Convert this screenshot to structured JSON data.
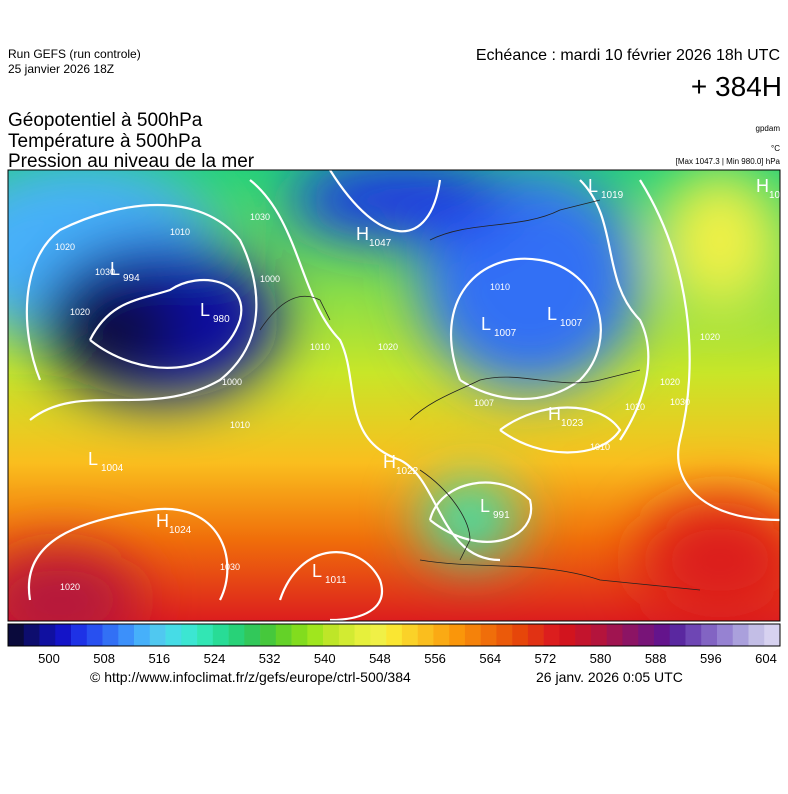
{
  "header": {
    "run": "Run GEFS (run controle)",
    "run_date": "25 janvier 2026 18Z",
    "valid": "Echéance : mardi 10 février 2026 18h UTC",
    "lead": "+ 384H"
  },
  "titles": [
    "Géopotentiel à 500hPa",
    "Température à 500hPa",
    "Pression au niveau de la mer"
  ],
  "units": {
    "geopotential": "gpdam",
    "temperature": "°C",
    "pressure": "[Max 1047.3 | Min 980.0] hPa"
  },
  "centers": [
    {
      "letter": "H",
      "value": "1047"
    },
    {
      "letter": "L",
      "value": "994"
    },
    {
      "letter": "L",
      "value": "980"
    },
    {
      "letter": "L",
      "value": "1004"
    },
    {
      "letter": "H",
      "value": "1024"
    },
    {
      "letter": "L",
      "value": "1011"
    },
    {
      "letter": "H",
      "value": "1022"
    },
    {
      "letter": "L",
      "value": "991"
    },
    {
      "letter": "L",
      "value": "1007"
    },
    {
      "letter": "L",
      "value": "1007"
    },
    {
      "letter": "H",
      "value": "1023"
    },
    {
      "letter": "L",
      "value": "1019"
    },
    {
      "letter": "H",
      "value": "10"
    }
  ],
  "isobar_labels": [
    "1030",
    "1020",
    "1010",
    "1000",
    "1030",
    "1020",
    "1010",
    "1000",
    "1010",
    "1020",
    "1010",
    "1030",
    "1020",
    "1010",
    "1007",
    "1020",
    "1020",
    "1030",
    "1020"
  ],
  "colorbar": {
    "ticks": [
      500,
      508,
      516,
      524,
      532,
      540,
      548,
      556,
      564,
      572,
      580,
      588,
      596,
      604
    ],
    "colors": [
      "#0a0a3c",
      "#0d0d6e",
      "#1010a0",
      "#1414c8",
      "#1e32e6",
      "#2850f0",
      "#3270f5",
      "#3c90fa",
      "#46b0fa",
      "#50c8f0",
      "#46dce6",
      "#3ce6d2",
      "#32e6b4",
      "#28dc96",
      "#28d278",
      "#32c85a",
      "#46c83c",
      "#64d228",
      "#82dc1e",
      "#a0e61e",
      "#bee628",
      "#d2eb32",
      "#e6f03c",
      "#f0f046",
      "#fae632",
      "#fad228",
      "#fabe1e",
      "#faaa14",
      "#fa960a",
      "#f5820a",
      "#f06e0a",
      "#eb5a0a",
      "#e6460a",
      "#e13214",
      "#dc1e1e",
      "#d2141e",
      "#c3142d",
      "#b4143c",
      "#a01450",
      "#8c1464",
      "#781478",
      "#64148c",
      "#5a28a0",
      "#6e46b4",
      "#8264c3",
      "#9682d2",
      "#aaa0dc",
      "#c3bee6",
      "#d7d2f0"
    ]
  },
  "footer": {
    "source": "© http://www.infoclimat.fr/z/gefs/europe/ctrl-500/384",
    "generated": "26 janv. 2026  0:05 UTC"
  }
}
